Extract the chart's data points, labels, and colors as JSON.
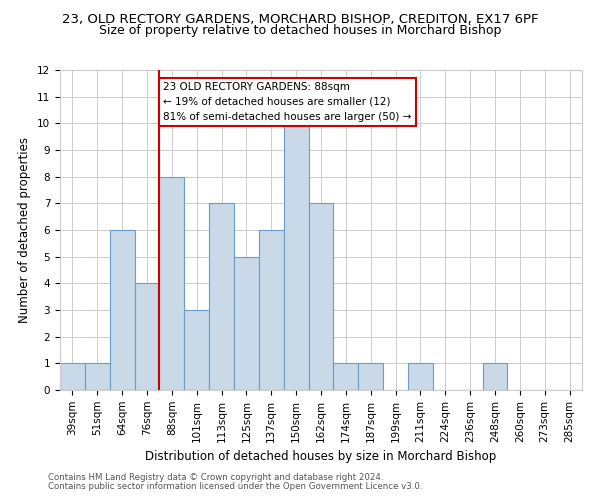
{
  "title1": "23, OLD RECTORY GARDENS, MORCHARD BISHOP, CREDITON, EX17 6PF",
  "title2": "Size of property relative to detached houses in Morchard Bishop",
  "xlabel": "Distribution of detached houses by size in Morchard Bishop",
  "ylabel": "Number of detached properties",
  "categories": [
    "39sqm",
    "51sqm",
    "64sqm",
    "76sqm",
    "88sqm",
    "101sqm",
    "113sqm",
    "125sqm",
    "137sqm",
    "150sqm",
    "162sqm",
    "174sqm",
    "187sqm",
    "199sqm",
    "211sqm",
    "224sqm",
    "236sqm",
    "248sqm",
    "260sqm",
    "273sqm",
    "285sqm"
  ],
  "values": [
    1,
    1,
    6,
    4,
    8,
    3,
    7,
    5,
    6,
    10,
    7,
    1,
    1,
    0,
    1,
    0,
    0,
    1,
    0,
    0,
    0
  ],
  "bar_color": "#c9d9e8",
  "bar_edge_color": "#6a9dc8",
  "highlight_line_index": 4,
  "highlight_line_color": "#cc0000",
  "annotation_text": "23 OLD RECTORY GARDENS: 88sqm\n← 19% of detached houses are smaller (12)\n81% of semi-detached houses are larger (50) →",
  "annotation_box_color": "#cc0000",
  "ylim": [
    0,
    12
  ],
  "yticks": [
    0,
    1,
    2,
    3,
    4,
    5,
    6,
    7,
    8,
    9,
    10,
    11,
    12
  ],
  "footer1": "Contains HM Land Registry data © Crown copyright and database right 2024.",
  "footer2": "Contains public sector information licensed under the Open Government Licence v3.0.",
  "bg_color": "#ffffff",
  "grid_color": "#cccccc",
  "title1_fontsize": 9.5,
  "title2_fontsize": 9,
  "xlabel_fontsize": 8.5,
  "ylabel_fontsize": 8.5,
  "tick_fontsize": 7.5,
  "annotation_fontsize": 7.5,
  "footer_fontsize": 6.2
}
